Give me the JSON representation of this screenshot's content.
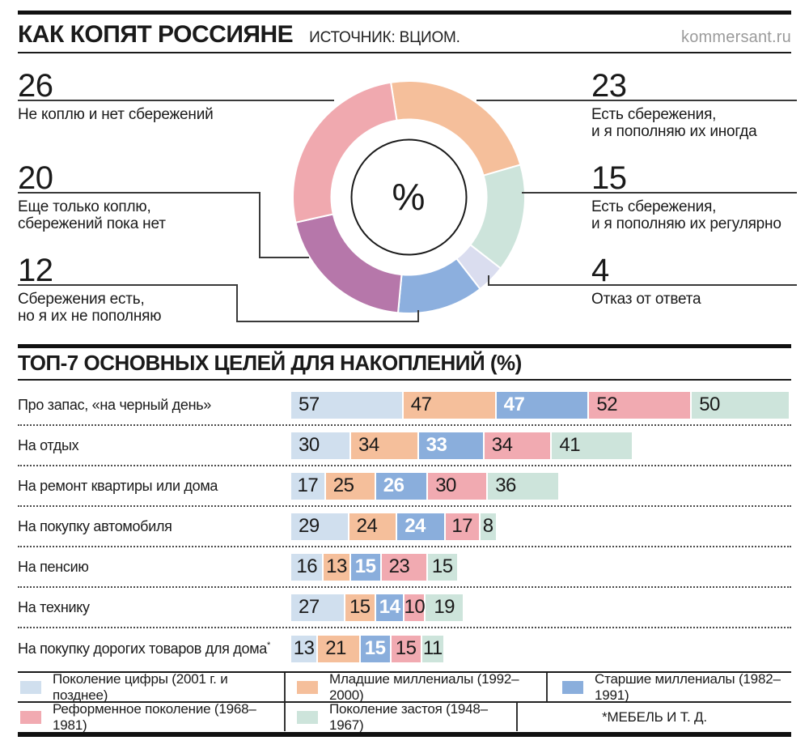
{
  "header": {
    "title": "КАК КОПЯТ РОССИЯНЕ",
    "source": "ИСТОЧНИК: ВЦИОМ.",
    "site": "kommersant.ru"
  },
  "chart_data": [
    {
      "type": "pie",
      "subtype": "donut",
      "title": "КАК КОПЯТ РОССИЯНЕ",
      "unit": "%",
      "center_label": "%",
      "start_angle_deg": -9,
      "direction": "clockwise",
      "segments": [
        {
          "value": 23,
          "label": "Есть сбережения,\nи я пополняю их иногда",
          "color": "#F5BF9B",
          "side": "right"
        },
        {
          "value": 15,
          "label": "Есть сбережения,\nи я пополняю их регулярно",
          "color": "#CDE4DB",
          "side": "right"
        },
        {
          "value": 4,
          "label": "Отказ от ответа",
          "color": "#DADDEF",
          "side": "right"
        },
        {
          "value": 12,
          "label": "Сбережения есть,\nно я их не пополняю",
          "color": "#8CAFDE",
          "side": "left"
        },
        {
          "value": 20,
          "label": "Еще только коплю,\nсбережений пока нет",
          "color": "#B677AA",
          "side": "left"
        },
        {
          "value": 26,
          "label": "Не коплю и нет сбережений",
          "color": "#F0A9AF",
          "side": "left"
        }
      ]
    },
    {
      "type": "bar",
      "orientation": "horizontal",
      "title": "ТОП-7 ОСНОВНЫХ ЦЕЛЕЙ ДЛЯ НАКОПЛЕНИЙ (%)",
      "unit": "%",
      "categories": [
        "Про запас, «на черный день»",
        "На отдых",
        "На ремонт квартиры или дома",
        "На покупку автомобиля",
        "На пенсию",
        "На технику",
        "На покупку дорогих товаров для дома*"
      ],
      "series": [
        {
          "name": "Поколение цифры (2001 г. и позднее)",
          "color": "#D0DFEE",
          "value_text_color": "#1A1A1A",
          "values": [
            57,
            30,
            17,
            29,
            16,
            27,
            13
          ]
        },
        {
          "name": "Младшие миллениалы (1992–2000)",
          "color": "#F5BF9B",
          "value_text_color": "#1A1A1A",
          "values": [
            47,
            34,
            25,
            24,
            13,
            15,
            21
          ]
        },
        {
          "name": "Старшие миллениалы (1982–1991)",
          "color": "#8AAEDC",
          "value_text_color": "#FFFFFF",
          "values": [
            47,
            33,
            26,
            24,
            15,
            14,
            15
          ]
        },
        {
          "name": "Реформенное поколение (1968–1981)",
          "color": "#F1AAB1",
          "value_text_color": "#1A1A1A",
          "values": [
            52,
            34,
            30,
            17,
            23,
            10,
            15
          ]
        },
        {
          "name": "Поколение застоя (1948–1967)",
          "color": "#CDE4DB",
          "value_text_color": "#1A1A1A",
          "values": [
            50,
            41,
            36,
            8,
            15,
            19,
            11
          ]
        }
      ],
      "footnote": "*МЕБЕЛЬ И Т. Д.",
      "legend_position": "bottom"
    }
  ]
}
